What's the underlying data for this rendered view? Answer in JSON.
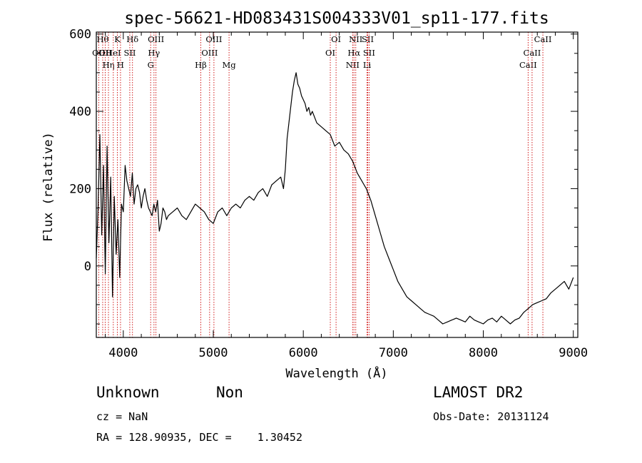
{
  "chart_data": {
    "type": "line",
    "title": "spec-56621-HD083431S004333V01_sp11-177.fits",
    "xlabel": "Wavelength (Å)",
    "ylabel": "Flux (relative)",
    "xlim": [
      3700,
      9050
    ],
    "ylim": [
      -185,
      605
    ],
    "x_ticks": [
      4000,
      5000,
      6000,
      7000,
      8000,
      9000
    ],
    "y_ticks": [
      0,
      200,
      400,
      600
    ],
    "series": [
      {
        "x": [
          3700,
          3720,
          3740,
          3760,
          3780,
          3800,
          3820,
          3840,
          3860,
          3880,
          3900,
          3920,
          3940,
          3960,
          3980,
          4000,
          4020,
          4040,
          4060,
          4080,
          4100,
          4120,
          4140,
          4160,
          4180,
          4200,
          4220,
          4240,
          4260,
          4280,
          4300,
          4320,
          4340,
          4360,
          4380,
          4400,
          4420,
          4440,
          4460,
          4480,
          4500,
          4550,
          4600,
          4650,
          4700,
          4750,
          4800,
          4850,
          4900,
          4950,
          5000,
          5050,
          5100,
          5150,
          5200,
          5250,
          5300,
          5350,
          5400,
          5450,
          5500,
          5550,
          5600,
          5650,
          5700,
          5750,
          5780,
          5800,
          5820,
          5840,
          5860,
          5880,
          5900,
          5920,
          5940,
          5960,
          5980,
          6000,
          6020,
          6040,
          6060,
          6080,
          6100,
          6150,
          6200,
          6250,
          6300,
          6350,
          6400,
          6450,
          6500,
          6550,
          6600,
          6650,
          6700,
          6750,
          6800,
          6850,
          6900,
          6950,
          7000,
          7050,
          7100,
          7150,
          7200,
          7250,
          7300,
          7350,
          7400,
          7450,
          7500,
          7550,
          7600,
          7650,
          7700,
          7750,
          7800,
          7850,
          7900,
          7950,
          8000,
          8050,
          8100,
          8150,
          8200,
          8250,
          8300,
          8350,
          8400,
          8450,
          8500,
          8550,
          8600,
          8650,
          8700,
          8750,
          8800,
          8850,
          8900,
          8950,
          9000
        ],
        "y": [
          20,
          150,
          340,
          80,
          260,
          -20,
          310,
          60,
          230,
          -80,
          180,
          30,
          120,
          -30,
          160,
          140,
          260,
          220,
          200,
          180,
          240,
          160,
          200,
          210,
          190,
          150,
          180,
          200,
          170,
          150,
          140,
          130,
          160,
          140,
          170,
          90,
          110,
          150,
          140,
          120,
          130,
          140,
          150,
          130,
          120,
          140,
          160,
          150,
          140,
          120,
          110,
          140,
          150,
          130,
          150,
          160,
          150,
          170,
          180,
          170,
          190,
          200,
          180,
          210,
          220,
          230,
          200,
          250,
          330,
          370,
          410,
          450,
          480,
          500,
          470,
          460,
          440,
          430,
          420,
          400,
          410,
          390,
          400,
          370,
          360,
          350,
          340,
          310,
          320,
          300,
          290,
          270,
          240,
          220,
          200,
          170,
          130,
          90,
          50,
          20,
          -10,
          -40,
          -60,
          -80,
          -90,
          -100,
          -110,
          -120,
          -125,
          -130,
          -140,
          -150,
          -145,
          -140,
          -135,
          -140,
          -145,
          -130,
          -140,
          -145,
          -150,
          -140,
          -135,
          -145,
          -130,
          -140,
          -150,
          -140,
          -135,
          -120,
          -110,
          -100,
          -95,
          -90,
          -85,
          -70,
          -60,
          -50,
          -40,
          -60,
          -30
        ]
      }
    ],
    "spectral_lines": [
      {
        "label": "OII",
        "wave": 3727,
        "row": 1
      },
      {
        "label": "Hθ",
        "wave": 3771,
        "row": 0
      },
      {
        "label": "OII",
        "wave": 3799,
        "row": 1
      },
      {
        "label": "Hη",
        "wave": 3835,
        "row": 2
      },
      {
        "label": "HeI",
        "wave": 3889,
        "row": 1
      },
      {
        "label": "K",
        "wave": 3934,
        "row": 0
      },
      {
        "label": "H",
        "wave": 3969,
        "row": 2
      },
      {
        "label": "SII",
        "wave": 4072,
        "row": 1
      },
      {
        "label": "Hδ",
        "wave": 4102,
        "row": 0
      },
      {
        "label": "G",
        "wave": 4304,
        "row": 2
      },
      {
        "label": "Hγ",
        "wave": 4341,
        "row": 1
      },
      {
        "label": "OIII",
        "wave": 4363,
        "row": 0
      },
      {
        "label": "Hβ",
        "wave": 4861,
        "row": 2
      },
      {
        "label": "OIII",
        "wave": 4959,
        "row": 1
      },
      {
        "label": "OIII",
        "wave": 5007,
        "row": 0
      },
      {
        "label": "Mg",
        "wave": 5175,
        "row": 2
      },
      {
        "label": "OI",
        "wave": 6300,
        "row": 1
      },
      {
        "label": "OI",
        "wave": 6364,
        "row": 0
      },
      {
        "label": "NII",
        "wave": 6548,
        "row": 2
      },
      {
        "label": "Hα",
        "wave": 6563,
        "row": 1
      },
      {
        "label": "NII",
        "wave": 6583,
        "row": 0
      },
      {
        "label": "SII",
        "wave": 6716,
        "row": 0
      },
      {
        "label": "SII",
        "wave": 6731,
        "row": 1
      },
      {
        "label": "Li",
        "wave": 6708,
        "row": 2
      },
      {
        "label": "CaII",
        "wave": 8498,
        "row": 2
      },
      {
        "label": "CaII",
        "wave": 8542,
        "row": 1
      },
      {
        "label": "CaII",
        "wave": 8662,
        "row": 0
      }
    ],
    "line_color": "#000000",
    "marker_color": "#cc0000",
    "grid": false
  },
  "info": {
    "class": "Unknown",
    "subclass": "Non",
    "survey": "LAMOST DR2",
    "cz": "cz = NaN",
    "obs_date": "Obs-Date: 20131124",
    "coords": "RA = 128.90935, DEC =    1.30452"
  }
}
